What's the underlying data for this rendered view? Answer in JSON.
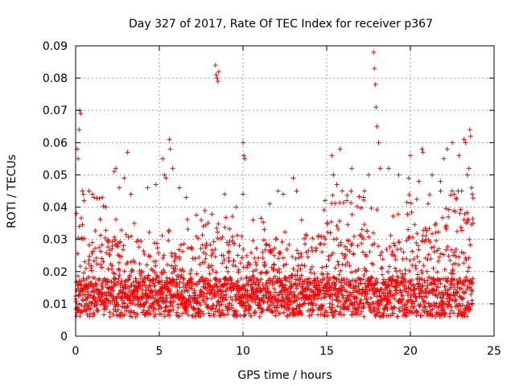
{
  "chart_data": {
    "type": "scatter",
    "title": "Day 327 of 2017, Rate Of TEC Index for receiver p367",
    "xlabel": "GPS time / hours",
    "ylabel": "ROTI / TECUs",
    "xlim": [
      0,
      25
    ],
    "ylim": [
      0,
      0.09
    ],
    "x_ticks": [
      0,
      5,
      10,
      15,
      20,
      25
    ],
    "x_tick_labels": [
      "0",
      "5",
      "10",
      "15",
      "20",
      "25"
    ],
    "y_ticks": [
      0,
      0.01,
      0.02,
      0.03,
      0.04,
      0.05,
      0.06,
      0.07,
      0.08,
      0.09
    ],
    "y_tick_labels": [
      "0",
      "0.01",
      "0.02",
      "0.03",
      "0.04",
      "0.05",
      "0.06",
      "0.07",
      "0.08",
      "0.09"
    ],
    "grid": true,
    "marker": "+",
    "color": "#ff0000",
    "data_x_range": [
      0,
      23.75
    ],
    "series": [
      {
        "points": [
          [
            0.05,
            0.038
          ],
          [
            0.1,
            0.058
          ],
          [
            0.15,
            0.055
          ],
          [
            0.2,
            0.064
          ],
          [
            0.25,
            0.07
          ],
          [
            0.3,
            0.069
          ],
          [
            0.4,
            0.045
          ],
          [
            0.5,
            0.042
          ],
          [
            0.8,
            0.045
          ],
          [
            1.0,
            0.044
          ],
          [
            1.1,
            0.043
          ],
          [
            1.6,
            0.043
          ],
          [
            1.8,
            0.04
          ],
          [
            2.3,
            0.051
          ],
          [
            2.4,
            0.052
          ],
          [
            2.6,
            0.046
          ],
          [
            2.9,
            0.049
          ],
          [
            3.1,
            0.057
          ],
          [
            3.3,
            0.044
          ],
          [
            4.3,
            0.046
          ],
          [
            4.8,
            0.047
          ],
          [
            5.2,
            0.055
          ],
          [
            5.3,
            0.05
          ],
          [
            5.4,
            0.049
          ],
          [
            5.6,
            0.061
          ],
          [
            5.65,
            0.058
          ],
          [
            5.8,
            0.052
          ],
          [
            6.2,
            0.046
          ],
          [
            6.6,
            0.043
          ],
          [
            7.5,
            0.036
          ],
          [
            8.35,
            0.084
          ],
          [
            8.4,
            0.081
          ],
          [
            8.45,
            0.08
          ],
          [
            8.5,
            0.079
          ],
          [
            8.55,
            0.082
          ],
          [
            8.9,
            0.044
          ],
          [
            9.6,
            0.04
          ],
          [
            10.0,
            0.06
          ],
          [
            10.05,
            0.056
          ],
          [
            10.1,
            0.055
          ],
          [
            10.0,
            0.044
          ],
          [
            10.6,
            0.036
          ],
          [
            11.6,
            0.041
          ],
          [
            12.1,
            0.045
          ],
          [
            12.4,
            0.044
          ],
          [
            13.0,
            0.049
          ],
          [
            13.2,
            0.045
          ],
          [
            13.5,
            0.036
          ],
          [
            14.9,
            0.042
          ],
          [
            15.3,
            0.056
          ],
          [
            15.4,
            0.05
          ],
          [
            15.6,
            0.047
          ],
          [
            15.8,
            0.058
          ],
          [
            16.2,
            0.042
          ],
          [
            16.5,
            0.052
          ],
          [
            17.2,
            0.043
          ],
          [
            17.5,
            0.05
          ],
          [
            17.8,
            0.088
          ],
          [
            17.85,
            0.083
          ],
          [
            17.9,
            0.078
          ],
          [
            17.95,
            0.071
          ],
          [
            18.0,
            0.065
          ],
          [
            18.1,
            0.06
          ],
          [
            18.2,
            0.052
          ],
          [
            18.7,
            0.052
          ],
          [
            19.3,
            0.05
          ],
          [
            19.9,
            0.049
          ],
          [
            20.0,
            0.056
          ],
          [
            20.5,
            0.048
          ],
          [
            20.7,
            0.058
          ],
          [
            20.75,
            0.057
          ],
          [
            21.3,
            0.05
          ],
          [
            21.8,
            0.048
          ],
          [
            22.0,
            0.055
          ],
          [
            22.2,
            0.058
          ],
          [
            22.5,
            0.06
          ],
          [
            22.9,
            0.056
          ],
          [
            23.2,
            0.061
          ],
          [
            23.3,
            0.06
          ],
          [
            23.4,
            0.05
          ],
          [
            23.5,
            0.052
          ],
          [
            23.55,
            0.064
          ],
          [
            23.6,
            0.062
          ],
          [
            23.65,
            0.046
          ],
          [
            23.7,
            0.044
          ],
          [
            23.75,
            0.035
          ]
        ]
      }
    ]
  }
}
